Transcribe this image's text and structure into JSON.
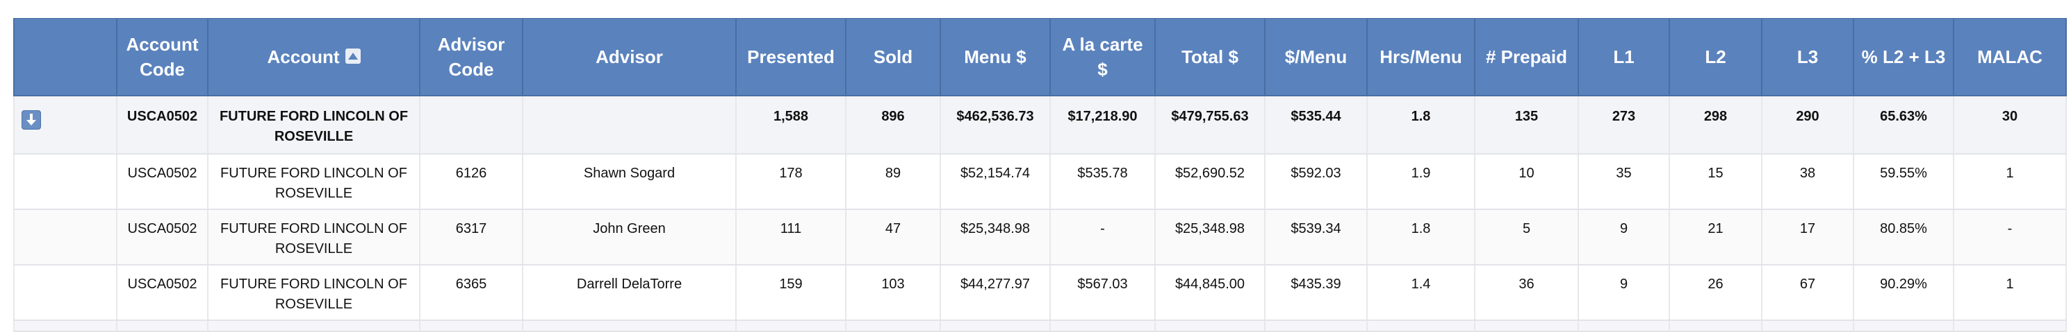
{
  "columns": [
    {
      "key": "control",
      "label": ""
    },
    {
      "key": "account_code",
      "label": "Account Code"
    },
    {
      "key": "account",
      "label": "Account",
      "sort": "sort-ascending-icon"
    },
    {
      "key": "advisor_code",
      "label": "Advisor Code"
    },
    {
      "key": "advisor",
      "label": "Advisor"
    },
    {
      "key": "presented",
      "label": "Presented"
    },
    {
      "key": "sold",
      "label": "Sold"
    },
    {
      "key": "menu",
      "label": "Menu $"
    },
    {
      "key": "alacarte",
      "label": "A la carte $"
    },
    {
      "key": "total",
      "label": "Total $"
    },
    {
      "key": "per_menu",
      "label": "$/Menu"
    },
    {
      "key": "hrs_menu",
      "label": "Hrs/Menu"
    },
    {
      "key": "prepaid",
      "label": "# Prepaid"
    },
    {
      "key": "l1",
      "label": "L1"
    },
    {
      "key": "l2",
      "label": "L2"
    },
    {
      "key": "l3",
      "label": "L3"
    },
    {
      "key": "pct_l2_l3",
      "label": "% L2 + L3"
    },
    {
      "key": "malac",
      "label": "MALAC"
    }
  ],
  "summary": {
    "expand_icon": "collapse-arrow-down-icon",
    "account_code": "USCA0502",
    "account": "FUTURE FORD LINCOLN OF ROSEVILLE",
    "advisor_code": "",
    "advisor": "",
    "presented": "1,588",
    "sold": "896",
    "menu": "$462,536.73",
    "alacarte": "$17,218.90",
    "total": "$479,755.63",
    "per_menu": "$535.44",
    "hrs_menu": "1.8",
    "prepaid": "135",
    "l1": "273",
    "l2": "298",
    "l3": "290",
    "pct_l2_l3": "65.63%",
    "malac": "30"
  },
  "rows": [
    {
      "account_code": "USCA0502",
      "account": "FUTURE FORD LINCOLN OF ROSEVILLE",
      "advisor_code": "6126",
      "advisor": "Shawn Sogard",
      "presented": "178",
      "sold": "89",
      "menu": "$52,154.74",
      "alacarte": "$535.78",
      "total": "$52,690.52",
      "per_menu": "$592.03",
      "hrs_menu": "1.9",
      "prepaid": "10",
      "l1": "35",
      "l2": "15",
      "l3": "38",
      "pct_l2_l3": "59.55%",
      "malac": "1"
    },
    {
      "account_code": "USCA0502",
      "account": "FUTURE FORD LINCOLN OF ROSEVILLE",
      "advisor_code": "6317",
      "advisor": "John Green",
      "presented": "111",
      "sold": "47",
      "menu": "$25,348.98",
      "alacarte": "-",
      "total": "$25,348.98",
      "per_menu": "$539.34",
      "hrs_menu": "1.8",
      "prepaid": "5",
      "l1": "9",
      "l2": "21",
      "l3": "17",
      "pct_l2_l3": "80.85%",
      "malac": "-"
    },
    {
      "account_code": "USCA0502",
      "account": "FUTURE FORD LINCOLN OF ROSEVILLE",
      "advisor_code": "6365",
      "advisor": "Darrell DelaTorre",
      "presented": "159",
      "sold": "103",
      "menu": "$44,277.97",
      "alacarte": "$567.03",
      "total": "$44,845.00",
      "per_menu": "$435.39",
      "hrs_menu": "1.4",
      "prepaid": "36",
      "l1": "9",
      "l2": "26",
      "l3": "67",
      "pct_l2_l3": "90.29%",
      "malac": "1"
    }
  ]
}
